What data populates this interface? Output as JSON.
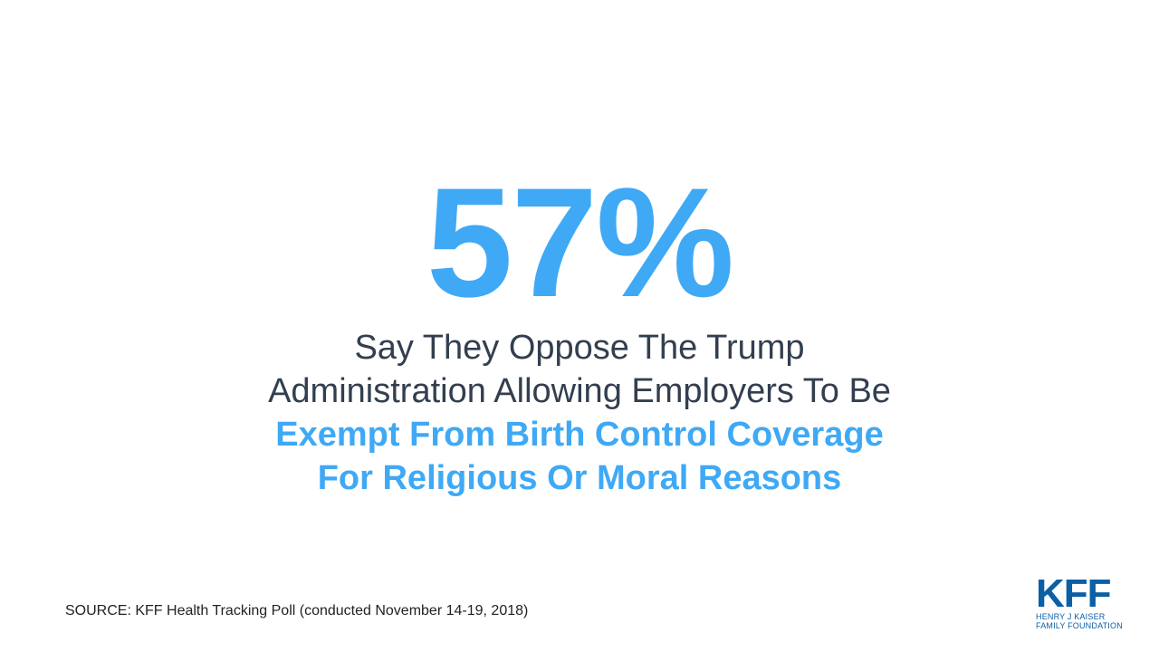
{
  "colors": {
    "accent": "#3fa9f5",
    "text_dark": "#333f4f",
    "source_text": "#222222",
    "logo_blue": "#0b5fa5",
    "background": "#ffffff"
  },
  "headline": {
    "stat": "57%"
  },
  "statement": {
    "line1": "Say They Oppose The Trump",
    "line2": "Administration Allowing Employers To Be",
    "line3": "Exempt From Birth Control Coverage",
    "line4": "For Religious Or Moral Reasons"
  },
  "footer": {
    "source": "SOURCE: KFF Health Tracking Poll (conducted November 14-19, 2018)"
  },
  "logo": {
    "mark": "KFF",
    "sub_line1": "HENRY J KAISER",
    "sub_line2": "FAMILY FOUNDATION"
  }
}
